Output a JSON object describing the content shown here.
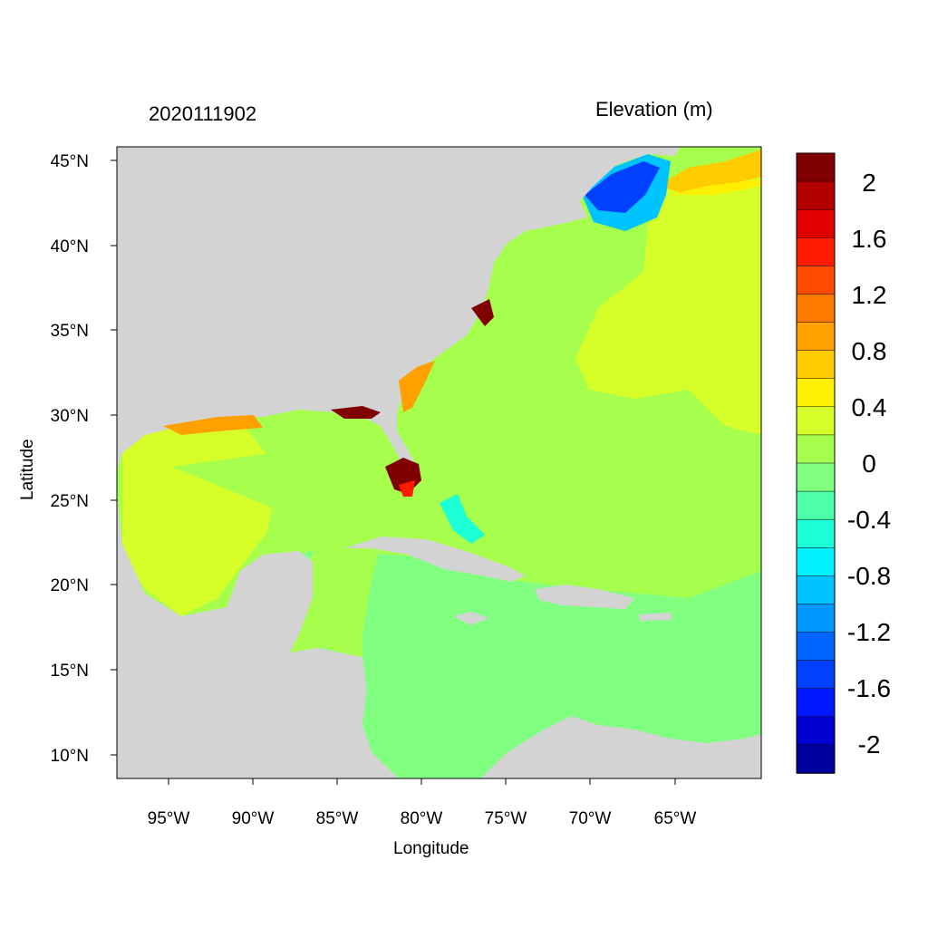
{
  "header": {
    "left_label": "2020111902",
    "right_label": "Elevation (m)"
  },
  "axes": {
    "xlabel": "Longitude",
    "ylabel": "Latitude",
    "lon_ticks": [
      "95°W",
      "90°W",
      "85°W",
      "80°W",
      "75°W",
      "70°W",
      "65°W"
    ],
    "lat_ticks": [
      "45°N",
      "40°N",
      "35°N",
      "30°N",
      "25°N",
      "20°N",
      "15°N",
      "10°N"
    ],
    "lon_values": [
      -95,
      -90,
      -85,
      -80,
      -75,
      -70,
      -65
    ],
    "lat_values": [
      45,
      40,
      35,
      30,
      25,
      20,
      15,
      10
    ]
  },
  "colorbar": {
    "labels": [
      "2",
      "1.6",
      "1.2",
      "0.8",
      "0.4",
      "0",
      "-0.4",
      "-0.8",
      "-1.2",
      "-1.6",
      "-2"
    ],
    "colors": [
      "#800000",
      "#b50000",
      "#e00000",
      "#ff1a00",
      "#ff4a00",
      "#ff7a00",
      "#ffa000",
      "#ffcc00",
      "#ffef00",
      "#d6ff2a",
      "#a6ff4d",
      "#80ff80",
      "#4dffa6",
      "#1affd5",
      "#00f2ff",
      "#00c4ff",
      "#0096ff",
      "#0066ff",
      "#0040ff",
      "#0018ff",
      "#0000d0",
      "#0000a0"
    ]
  },
  "map": {
    "land_color": "#d3d3d3",
    "ocean_colors": {
      "caribbean": "#80ff80",
      "gulf_east": "#a6ff4d",
      "gulf_west": "#d6ff2a",
      "atlantic": "#a6ff4d",
      "north_atlantic": "#d6ff2a",
      "gulf_of_maine": "#0066ff",
      "nova_scotia": "#ffcc00",
      "surge_high": "#800000",
      "surge_mid": "#ff7a00"
    }
  }
}
